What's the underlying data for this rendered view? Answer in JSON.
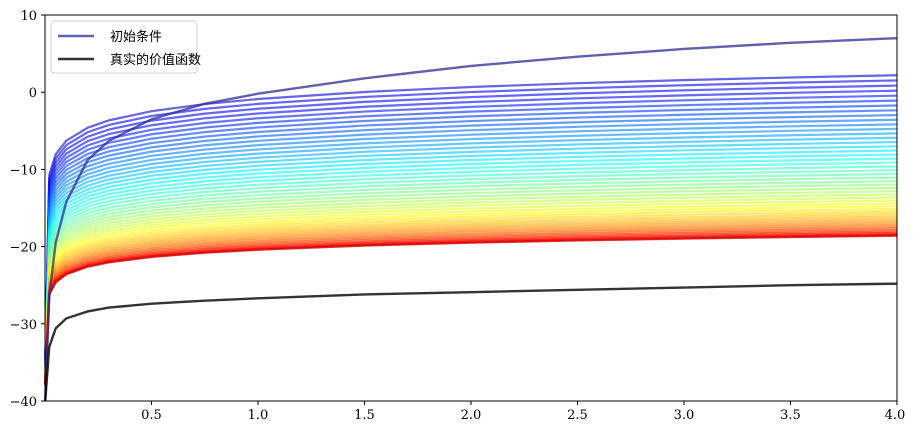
{
  "chart_data": {
    "type": "line",
    "title": "",
    "xlabel": "",
    "ylabel": "",
    "xlim": [
      0,
      4
    ],
    "ylim": [
      -40,
      10
    ],
    "grid": false,
    "x_ticks": [
      0.5,
      1.0,
      1.5,
      2.0,
      2.5,
      3.0,
      3.5,
      4.0
    ],
    "x_tick_labels": [
      "0.5",
      "1.0",
      "1.5",
      "2.0",
      "2.5",
      "3.0",
      "3.5",
      "4.0"
    ],
    "y_ticks": [
      -40,
      -30,
      -20,
      -10,
      0,
      10
    ],
    "y_tick_labels": [
      "−40",
      "−30",
      "−20",
      "−10",
      "0",
      "10"
    ],
    "x": [
      0.001,
      0.02,
      0.05,
      0.1,
      0.2,
      0.3,
      0.5,
      0.75,
      1.0,
      1.5,
      2.0,
      2.5,
      3.0,
      3.5,
      4.0
    ],
    "legend": {
      "position": "upper-left",
      "entries": [
        {
          "label": "初始条件",
          "color": "#3c3ca0"
        },
        {
          "label": "真实的价值函数",
          "color": "#000000"
        }
      ]
    },
    "series": [
      {
        "name": "初始条件",
        "role": "initial",
        "color": "#2b2b9a",
        "values": [
          -40,
          -26.5,
          -19.5,
          -14.2,
          -8.8,
          -6.3,
          -3.5,
          -1.5,
          -0.2,
          1.8,
          3.4,
          4.6,
          5.6,
          6.4,
          7.0
        ]
      },
      {
        "name": "真实的价值函数",
        "role": "true",
        "color": "#000000",
        "values": [
          -40,
          -33.0,
          -30.6,
          -29.3,
          -28.4,
          -27.9,
          -27.4,
          -27.0,
          -26.7,
          -26.2,
          -25.9,
          -25.6,
          -25.3,
          -25.0,
          -24.8
        ]
      }
    ],
    "iterations": {
      "colormap": "jet",
      "count": 50,
      "first_end_value": 2.2,
      "last_end_value": -18.6,
      "first_start_value": -35,
      "last_start_value": -38,
      "first_knee_value": -10.7,
      "last_knee_value": -26.2
    }
  }
}
